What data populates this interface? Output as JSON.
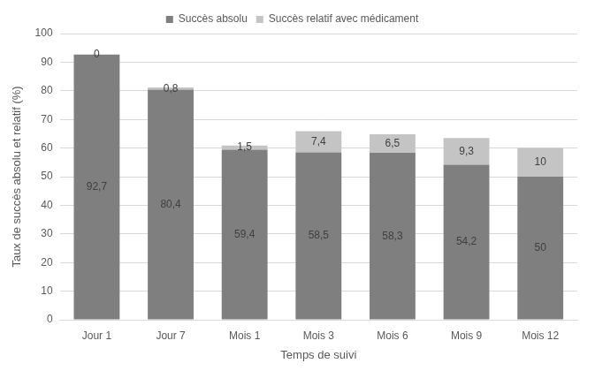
{
  "chart_data": {
    "type": "bar",
    "x_label": "Temps de suivi",
    "y_label": "Taux de succès absolu et relatif (%)",
    "categories": [
      "Jour 1",
      "Jour 7",
      "Mois 1",
      "Mois 3",
      "Mois 6",
      "Mois 9",
      "Mois 12"
    ],
    "series": [
      {
        "name": "Succès absolu",
        "color": "#7f7f7f",
        "values": [
          92.7,
          80.4,
          59.4,
          58.5,
          58.3,
          54.2,
          50
        ],
        "value_labels": [
          "92,7",
          "80,4",
          "59,4",
          "58,5",
          "58,3",
          "54,2",
          "50"
        ]
      },
      {
        "name": "Succès relatif avec médicament",
        "color": "#c4c4c4",
        "values": [
          0,
          0.8,
          1.5,
          7.4,
          6.5,
          9.3,
          10
        ],
        "value_labels": [
          "0",
          "0,8",
          "1,5",
          "7,4",
          "6,5",
          "9,3",
          "10"
        ]
      }
    ],
    "ylim": [
      0,
      100
    ],
    "yticks": [
      0,
      10,
      20,
      30,
      40,
      50,
      60,
      70,
      80,
      90,
      100
    ],
    "grid": true,
    "legend": "top",
    "stacked": true,
    "data_labels": true
  }
}
